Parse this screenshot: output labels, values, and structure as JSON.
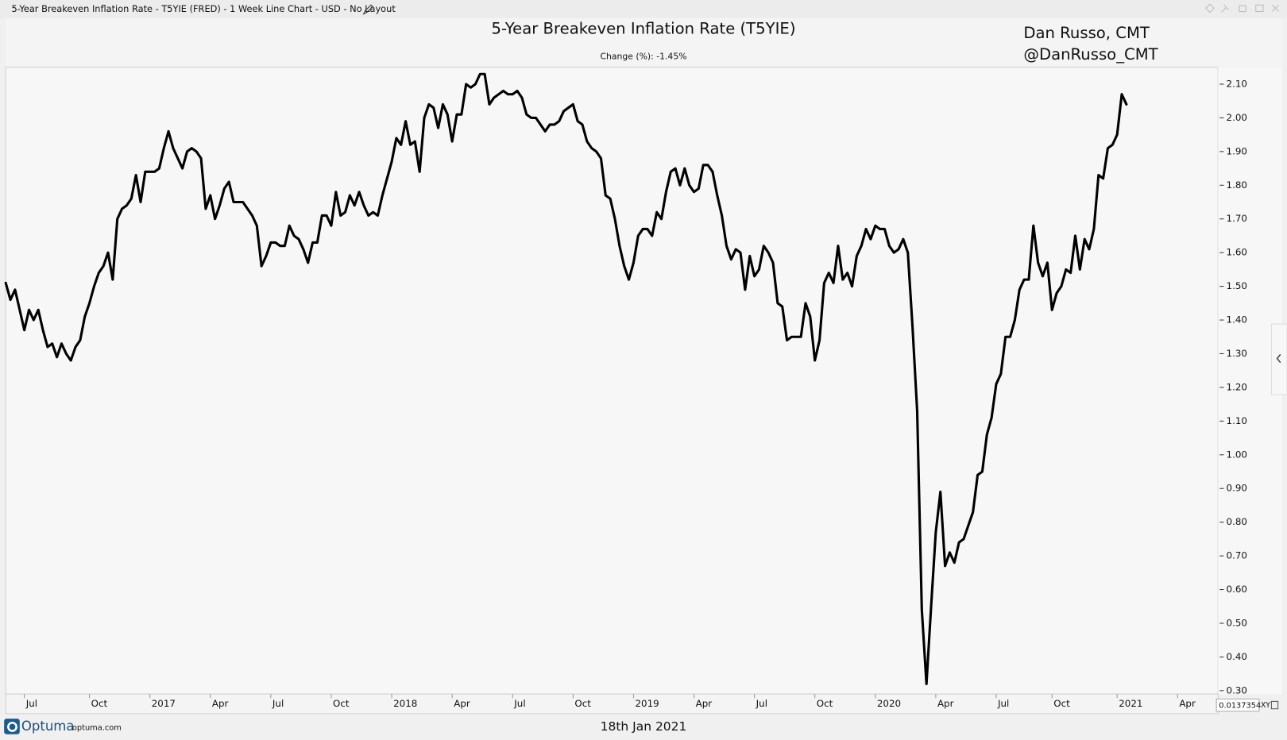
{
  "window": {
    "title": "5-Year Breakeven Inflation Rate - T5YIE (FRED) - 1 Week Line Chart - USD - No Layout"
  },
  "footer": {
    "brand": "Optuma",
    "site": "optuma.com",
    "date": "18th Jan 2021"
  },
  "scale_box": {
    "value": "0.0137354",
    "mode": "XY"
  },
  "chart_data": {
    "type": "line",
    "title": "5-Year Breakeven Inflation Rate (T5YIE)",
    "subtitle": "Change (%): -1.45%",
    "annotations": [
      "Dan Russo, CMT",
      "@DanRusso_CMT"
    ],
    "categories": [
      null,
      null,
      null,
      null,
      "Jul",
      null,
      null,
      null,
      null,
      null,
      null,
      null,
      null,
      null,
      null,
      null,
      null,
      null,
      "Oct",
      null,
      null,
      null,
      null,
      null,
      null,
      null,
      null,
      null,
      null,
      null,
      null,
      "2017",
      null,
      null,
      null,
      null,
      null,
      null,
      null,
      null,
      null,
      null,
      null,
      null,
      "Apr",
      null,
      null,
      null,
      null,
      null,
      null,
      null,
      null,
      null,
      null,
      null,
      null,
      "Jul",
      null,
      null,
      null,
      null,
      null,
      null,
      null,
      null,
      null,
      null,
      null,
      null,
      "Oct",
      null,
      null,
      null,
      null,
      null,
      null,
      null,
      null,
      null,
      null,
      null,
      null,
      "2018",
      null,
      null,
      null,
      null,
      null,
      null,
      null,
      null,
      null,
      null,
      null,
      null,
      "Apr",
      null,
      null,
      null,
      null,
      null,
      null,
      null,
      null,
      null,
      null,
      null,
      null,
      "Jul",
      null,
      null,
      null,
      null,
      null,
      null,
      null,
      null,
      null,
      null,
      null,
      null,
      "Oct",
      null,
      null,
      null,
      null,
      null,
      null,
      null,
      null,
      null,
      null,
      null,
      null,
      "2019",
      null,
      null,
      null,
      null,
      null,
      null,
      null,
      null,
      null,
      null,
      null,
      null,
      "Apr",
      null,
      null,
      null,
      null,
      null,
      null,
      null,
      null,
      null,
      null,
      null,
      null,
      "Jul",
      null,
      null,
      null,
      null,
      null,
      null,
      null,
      null,
      null,
      null,
      null,
      null,
      "Oct",
      null,
      null,
      null,
      null,
      null,
      null,
      null,
      null,
      null,
      null,
      null,
      null,
      "2020",
      null,
      null,
      null,
      null,
      null,
      null,
      null,
      null,
      null,
      null,
      null,
      null,
      "Apr",
      null,
      null,
      null,
      null,
      null,
      null,
      null,
      null,
      null,
      null,
      null,
      null,
      "Jul",
      null,
      null,
      null,
      null,
      null,
      null,
      null,
      null,
      null,
      null,
      null,
      "Oct",
      null,
      null,
      null,
      null,
      null,
      null,
      null,
      null,
      null,
      null,
      null,
      null,
      null,
      "2021",
      null,
      null,
      null,
      null,
      null,
      null,
      null,
      null,
      null,
      null,
      null,
      null,
      "Apr",
      null,
      null,
      null,
      null,
      null,
      null,
      null,
      null
    ],
    "series": [
      {
        "name": "T5YIE",
        "color": "#000000",
        "values": [
          1.51,
          1.46,
          1.49,
          1.43,
          1.37,
          1.43,
          1.4,
          1.43,
          1.37,
          1.32,
          1.33,
          1.29,
          1.33,
          1.3,
          1.28,
          1.32,
          1.34,
          1.41,
          1.45,
          1.5,
          1.54,
          1.56,
          1.6,
          1.52,
          1.7,
          1.73,
          1.74,
          1.76,
          1.83,
          1.75,
          1.84,
          1.84,
          1.84,
          1.85,
          1.91,
          1.96,
          1.91,
          1.88,
          1.85,
          1.9,
          1.91,
          1.9,
          1.88,
          1.73,
          1.77,
          1.7,
          1.74,
          1.79,
          1.81,
          1.75,
          1.75,
          1.75,
          1.73,
          1.71,
          1.68,
          1.56,
          1.59,
          1.63,
          1.63,
          1.62,
          1.62,
          1.68,
          1.65,
          1.64,
          1.61,
          1.57,
          1.63,
          1.63,
          1.71,
          1.71,
          1.68,
          1.78,
          1.71,
          1.72,
          1.77,
          1.74,
          1.78,
          1.74,
          1.71,
          1.72,
          1.71,
          1.77,
          1.82,
          1.87,
          1.94,
          1.92,
          1.99,
          1.92,
          1.93,
          1.84,
          2.0,
          2.04,
          2.03,
          1.97,
          2.04,
          2.01,
          1.93,
          2.01,
          2.01,
          2.1,
          2.09,
          2.1,
          2.13,
          2.13,
          2.04,
          2.06,
          2.07,
          2.08,
          2.07,
          2.07,
          2.08,
          2.06,
          2.01,
          2.0,
          2.0,
          1.98,
          1.96,
          1.98,
          1.98,
          1.99,
          2.02,
          2.03,
          2.04,
          1.99,
          1.98,
          1.93,
          1.91,
          1.9,
          1.88,
          1.77,
          1.76,
          1.7,
          1.62,
          1.56,
          1.52,
          1.57,
          1.65,
          1.67,
          1.67,
          1.65,
          1.72,
          1.7,
          1.78,
          1.84,
          1.85,
          1.8,
          1.85,
          1.8,
          1.78,
          1.79,
          1.86,
          1.86,
          1.84,
          1.77,
          1.71,
          1.62,
          1.58,
          1.61,
          1.6,
          1.49,
          1.59,
          1.53,
          1.55,
          1.62,
          1.6,
          1.57,
          1.45,
          1.44,
          1.34,
          1.35,
          1.35,
          1.35,
          1.45,
          1.41,
          1.28,
          1.34,
          1.51,
          1.54,
          1.51,
          1.62,
          1.52,
          1.54,
          1.5,
          1.59,
          1.62,
          1.67,
          1.64,
          1.68,
          1.67,
          1.67,
          1.62,
          1.6,
          1.61,
          1.64,
          1.6,
          1.38,
          1.13,
          0.54,
          0.32,
          0.55,
          0.77,
          0.89,
          0.67,
          0.71,
          0.68,
          0.74,
          0.75,
          0.79,
          0.83,
          0.94,
          0.95,
          1.06,
          1.11,
          1.21,
          1.24,
          1.35,
          1.35,
          1.4,
          1.49,
          1.52,
          1.52,
          1.68,
          1.57,
          1.53,
          1.57,
          1.43,
          1.48,
          1.5,
          1.55,
          1.54,
          1.65,
          1.55,
          1.64,
          1.61,
          1.67,
          1.83,
          1.82,
          1.91,
          1.92,
          1.95,
          2.07,
          2.04,
          null,
          null,
          null,
          null,
          null,
          null,
          null,
          null,
          null,
          null,
          null,
          null,
          null,
          null,
          null,
          null,
          null,
          null,
          null
        ]
      }
    ],
    "ylim": [
      0.29,
      2.15
    ],
    "yticks": [
      {
        "value": 0.3,
        "label": "0.30"
      },
      {
        "value": 0.4,
        "label": "0.40"
      },
      {
        "value": 0.5,
        "label": "0.50"
      },
      {
        "value": 0.6,
        "label": "0.60"
      },
      {
        "value": 0.7,
        "label": "0.70"
      },
      {
        "value": 0.8,
        "label": "0.80"
      },
      {
        "value": 0.9,
        "label": "0.90"
      },
      {
        "value": 1.0,
        "label": "1.00"
      },
      {
        "value": 1.1,
        "label": "1.10"
      },
      {
        "value": 1.2,
        "label": "1.20"
      },
      {
        "value": 1.3,
        "label": "1.30"
      },
      {
        "value": 1.4,
        "label": "1.40"
      },
      {
        "value": 1.5,
        "label": "1.50"
      },
      {
        "value": 1.6,
        "label": "1.60"
      },
      {
        "value": 1.7,
        "label": "1.70"
      },
      {
        "value": 1.8,
        "label": "1.80"
      },
      {
        "value": 1.9,
        "label": "1.90"
      },
      {
        "value": 2.0,
        "label": "2.00"
      },
      {
        "value": 2.1,
        "label": "2.10"
      }
    ],
    "grid": false,
    "axis_side": "right"
  }
}
